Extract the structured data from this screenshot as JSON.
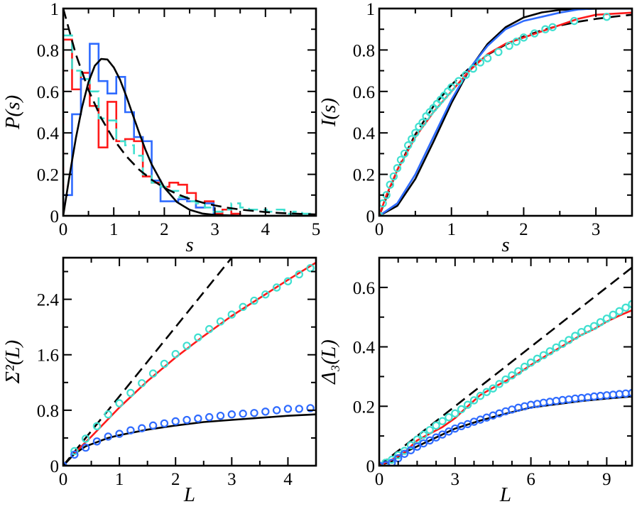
{
  "colors": {
    "red": "#ff1a1a",
    "blue": "#2f6bff",
    "cyan": "#40e0d0",
    "black": "#000000"
  },
  "chart_data": [
    {
      "type": "line",
      "panel": "top-left",
      "xlabel": "s",
      "ylabel": "P(s)",
      "xlim": [
        0,
        5
      ],
      "ylim": [
        0,
        1
      ],
      "xticks": [
        "0",
        "1",
        "2",
        "3",
        "4",
        "5"
      ],
      "xtick_values": [
        0,
        1,
        2,
        3,
        4,
        5
      ],
      "yticks": [
        "0",
        "0.2",
        "0.4",
        "0.6",
        "0.8",
        "1"
      ],
      "ytick_values": [
        0,
        0.2,
        0.4,
        0.6,
        0.8,
        1
      ],
      "x_minor_step": 0.5,
      "y_minor_step": 0.1,
      "histograms": [
        {
          "color": "red",
          "style": "solid",
          "bin_width": 0.175,
          "values": [
            0.85,
            0.61,
            0.69,
            0.53,
            0.33,
            0.55,
            0.36,
            0.37,
            0.36,
            0.19,
            0.16,
            0.14,
            0.16,
            0.15,
            0.11,
            0.04,
            0.07,
            0.01,
            0.03,
            0.01
          ]
        },
        {
          "color": "blue",
          "style": "solid",
          "bin_width": 0.175,
          "values": [
            0.1,
            0.49,
            0.66,
            0.83,
            0.65,
            0.59,
            0.67,
            0.5,
            0.38,
            0.36,
            0.17,
            0.07,
            0.07,
            0.08,
            0.07,
            0.04,
            0.06,
            0.0
          ]
        },
        {
          "color": "cyan",
          "style": "dashed",
          "bin_width": 0.175,
          "values": [
            0.87,
            0.7,
            0.66,
            0.6,
            0.47,
            0.46,
            0.36,
            0.34,
            0.29,
            0.2,
            0.16,
            0.14,
            0.12,
            0.09,
            0.07,
            0.06,
            0.04,
            0.02,
            0.03,
            0.06,
            0.04,
            0.03,
            0.03,
            0.02,
            0.03,
            0.01,
            0.02,
            0.01
          ]
        }
      ],
      "series": [
        {
          "color": "black",
          "style": "dashed",
          "x": [
            0,
            0.25,
            0.5,
            0.75,
            1,
            1.25,
            1.5,
            1.75,
            2,
            2.25,
            2.5,
            2.75,
            3,
            3.25,
            3.5,
            3.75,
            4,
            4.25,
            4.5,
            4.75,
            5
          ],
          "y": [
            1,
            0.779,
            0.607,
            0.472,
            0.368,
            0.287,
            0.223,
            0.174,
            0.135,
            0.105,
            0.082,
            0.064,
            0.05,
            0.039,
            0.03,
            0.024,
            0.018,
            0.014,
            0.011,
            0.009,
            0.007
          ]
        },
        {
          "color": "black",
          "style": "solid",
          "x": [
            0,
            0.125,
            0.25,
            0.375,
            0.5,
            0.625,
            0.75,
            0.875,
            1,
            1.125,
            1.25,
            1.375,
            1.5,
            1.625,
            1.75,
            2,
            2.25,
            2.5,
            2.75,
            3,
            3.5,
            4,
            5
          ],
          "y": [
            0,
            0.193,
            0.374,
            0.526,
            0.645,
            0.724,
            0.757,
            0.754,
            0.716,
            0.656,
            0.576,
            0.488,
            0.402,
            0.32,
            0.248,
            0.136,
            0.066,
            0.029,
            0.011,
            0.004,
            0.0003,
            0,
            0
          ]
        }
      ]
    },
    {
      "type": "line",
      "panel": "top-right",
      "xlabel": "s",
      "ylabel": "I(s)",
      "xlim": [
        0,
        3.5
      ],
      "ylim": [
        0,
        1
      ],
      "xticks": [
        "0",
        "1",
        "2",
        "3"
      ],
      "xtick_values": [
        0,
        1,
        2,
        3
      ],
      "yticks": [
        "0",
        "0.2",
        "0.4",
        "0.6",
        "0.8",
        "1"
      ],
      "ytick_values": [
        0,
        0.2,
        0.4,
        0.6,
        0.8,
        1
      ],
      "x_minor_step": 0.5,
      "y_minor_step": 0.1,
      "series": [
        {
          "color": "black",
          "style": "dashed",
          "x": [
            0,
            0.25,
            0.5,
            0.75,
            1,
            1.25,
            1.5,
            1.75,
            2,
            2.25,
            2.5,
            2.75,
            3,
            3.25,
            3.5
          ],
          "y": [
            0,
            0.221,
            0.393,
            0.528,
            0.632,
            0.713,
            0.777,
            0.826,
            0.865,
            0.895,
            0.918,
            0.936,
            0.95,
            0.961,
            0.97
          ]
        },
        {
          "color": "black",
          "style": "solid",
          "x": [
            0,
            0.25,
            0.5,
            0.75,
            1,
            1.25,
            1.5,
            1.75,
            2,
            2.25,
            2.5,
            2.75,
            3,
            3.25,
            3.5
          ],
          "y": [
            0,
            0.048,
            0.178,
            0.357,
            0.544,
            0.707,
            0.829,
            0.91,
            0.957,
            0.981,
            0.993,
            0.997,
            0.999,
            1,
            1
          ]
        },
        {
          "color": "blue",
          "style": "solid",
          "x": [
            0,
            0.25,
            0.5,
            0.75,
            1,
            1.25,
            1.5,
            1.75,
            2,
            2.25,
            2.5,
            2.75,
            3,
            3.5
          ],
          "y": [
            0,
            0.06,
            0.2,
            0.38,
            0.56,
            0.71,
            0.82,
            0.9,
            0.94,
            0.96,
            0.98,
            0.995,
            1,
            1
          ]
        },
        {
          "color": "red",
          "style": "solid",
          "x": [
            0,
            0.1,
            0.25,
            0.5,
            0.75,
            1,
            1.25,
            1.5,
            1.75,
            2,
            2.25,
            2.5,
            2.75,
            3,
            3.25,
            3.5
          ],
          "y": [
            0,
            0.1,
            0.22,
            0.38,
            0.5,
            0.6,
            0.7,
            0.78,
            0.83,
            0.86,
            0.89,
            0.92,
            0.95,
            0.97,
            0.975,
            0.98
          ]
        },
        {
          "color": "cyan",
          "style": "circles",
          "x": [
            0,
            0.05,
            0.1,
            0.15,
            0.2,
            0.25,
            0.3,
            0.35,
            0.4,
            0.45,
            0.5,
            0.55,
            0.6,
            0.65,
            0.7,
            0.75,
            0.8,
            0.85,
            0.9,
            0.95,
            1.0,
            1.1,
            1.2,
            1.3,
            1.4,
            1.5,
            1.65,
            1.8,
            1.9,
            2.0,
            2.15,
            2.3,
            2.4,
            2.7,
            3.15
          ],
          "y": [
            0,
            0.06,
            0.1,
            0.15,
            0.19,
            0.23,
            0.27,
            0.3,
            0.34,
            0.37,
            0.4,
            0.43,
            0.45,
            0.48,
            0.5,
            0.52,
            0.54,
            0.56,
            0.58,
            0.6,
            0.62,
            0.65,
            0.68,
            0.71,
            0.74,
            0.76,
            0.79,
            0.82,
            0.84,
            0.86,
            0.88,
            0.9,
            0.91,
            0.94,
            0.96
          ]
        }
      ]
    },
    {
      "type": "line",
      "panel": "bottom-left",
      "xlabel": "L",
      "ylabel": "Σ²(L)",
      "xlim": [
        0,
        4.5
      ],
      "ylim": [
        0,
        3
      ],
      "xticks": [
        "0",
        "1",
        "2",
        "3",
        "4"
      ],
      "xtick_values": [
        0,
        1,
        2,
        3,
        4
      ],
      "yticks": [
        "0",
        "0.8",
        "1.6",
        "2.4"
      ],
      "ytick_values": [
        0,
        0.8,
        1.6,
        2.4
      ],
      "x_minor_step": 0.5,
      "y_minor_step": 0.4,
      "series": [
        {
          "color": "black",
          "style": "dashed",
          "x": [
            0,
            3
          ],
          "y": [
            0,
            3
          ]
        },
        {
          "color": "black",
          "style": "solid",
          "x": [
            0,
            0.2,
            0.4,
            0.6,
            0.8,
            1,
            1.5,
            2,
            2.5,
            3,
            3.5,
            4,
            4.5
          ],
          "y": [
            0,
            0.17,
            0.28,
            0.34,
            0.4,
            0.44,
            0.52,
            0.58,
            0.63,
            0.66,
            0.69,
            0.72,
            0.74
          ]
        },
        {
          "color": "red",
          "style": "solid",
          "x": [
            0.2,
            0.5,
            1,
            1.5,
            2,
            2.5,
            3,
            3.5,
            4,
            4.5
          ],
          "y": [
            0.18,
            0.42,
            0.84,
            1.22,
            1.56,
            1.87,
            2.16,
            2.42,
            2.68,
            2.93
          ]
        },
        {
          "color": "cyan",
          "style": "circles",
          "x": [
            0.2,
            0.4,
            0.6,
            0.8,
            1.0,
            1.2,
            1.4,
            1.6,
            1.8,
            2.0,
            2.2,
            2.4,
            2.6,
            2.8,
            3.0,
            3.2,
            3.4,
            3.6,
            3.8,
            4.0,
            4.2,
            4.4
          ],
          "y": [
            0.21,
            0.39,
            0.57,
            0.74,
            0.9,
            1.05,
            1.19,
            1.33,
            1.47,
            1.61,
            1.73,
            1.85,
            1.97,
            2.08,
            2.18,
            2.29,
            2.38,
            2.47,
            2.57,
            2.66,
            2.76,
            2.85
          ]
        },
        {
          "color": "blue",
          "style": "circles",
          "x": [
            0,
            0.2,
            0.4,
            0.6,
            0.8,
            1.0,
            1.2,
            1.4,
            1.6,
            1.8,
            2.0,
            2.2,
            2.4,
            2.6,
            2.8,
            3.0,
            3.2,
            3.4,
            3.6,
            3.8,
            4.0,
            4.2,
            4.4
          ],
          "y": [
            0,
            0.16,
            0.26,
            0.35,
            0.42,
            0.46,
            0.51,
            0.54,
            0.58,
            0.61,
            0.64,
            0.66,
            0.68,
            0.7,
            0.72,
            0.74,
            0.75,
            0.76,
            0.78,
            0.8,
            0.82,
            0.82,
            0.83
          ]
        }
      ]
    },
    {
      "type": "line",
      "panel": "bottom-right",
      "xlabel": "L",
      "ylabel": "Δ₃(L)",
      "xlim": [
        0,
        10
      ],
      "ylim": [
        0,
        0.7
      ],
      "xticks": [
        "0",
        "3",
        "6",
        "9"
      ],
      "xtick_values": [
        0,
        3,
        6,
        9
      ],
      "yticks": [
        "0",
        "0.2",
        "0.4",
        "0.6"
      ],
      "ytick_values": [
        0,
        0.2,
        0.4,
        0.6
      ],
      "x_minor_step": 0.75,
      "y_minor_step": 0.1,
      "series": [
        {
          "color": "black",
          "style": "dashed",
          "x": [
            0,
            10
          ],
          "y": [
            0,
            0.667
          ]
        },
        {
          "color": "black",
          "style": "solid",
          "x": [
            0,
            0.5,
            1,
            1.5,
            2,
            3,
            4,
            5,
            6,
            7,
            8,
            9,
            10
          ],
          "y": [
            0,
            0.015,
            0.045,
            0.065,
            0.085,
            0.125,
            0.152,
            0.175,
            0.196,
            0.207,
            0.218,
            0.226,
            0.233
          ]
        },
        {
          "color": "red",
          "style": "solid",
          "x": [
            0,
            0.5,
            1,
            1.5,
            2,
            2.5,
            3,
            3.5,
            4,
            4.5,
            5,
            5.5,
            6,
            6.5,
            7,
            7.5,
            8,
            8.5,
            9,
            9.5,
            10
          ],
          "y": [
            0,
            0.02,
            0.045,
            0.085,
            0.108,
            0.13,
            0.16,
            0.2,
            0.238,
            0.262,
            0.285,
            0.31,
            0.339,
            0.365,
            0.39,
            0.415,
            0.44,
            0.46,
            0.485,
            0.505,
            0.523
          ]
        },
        {
          "color": "cyan",
          "style": "circles",
          "x": [
            0,
            0.25,
            0.5,
            0.75,
            1,
            1.25,
            1.5,
            1.75,
            2,
            2.25,
            2.5,
            2.75,
            3,
            3.25,
            3.5,
            3.75,
            4,
            4.25,
            4.5,
            4.75,
            5,
            5.25,
            5.5,
            5.75,
            6,
            6.25,
            6.5,
            6.75,
            7,
            7.25,
            7.5,
            7.75,
            8,
            8.25,
            8.5,
            8.75,
            9,
            9.25,
            9.5,
            9.75,
            10
          ],
          "y": [
            0,
            0.01,
            0.02,
            0.035,
            0.05,
            0.069,
            0.088,
            0.104,
            0.12,
            0.135,
            0.15,
            0.163,
            0.176,
            0.19,
            0.205,
            0.22,
            0.235,
            0.248,
            0.26,
            0.275,
            0.29,
            0.304,
            0.318,
            0.333,
            0.347,
            0.36,
            0.372,
            0.385,
            0.398,
            0.41,
            0.423,
            0.437,
            0.45,
            0.46,
            0.47,
            0.483,
            0.495,
            0.508,
            0.52,
            0.532,
            0.544
          ]
        },
        {
          "color": "blue",
          "style": "circles",
          "x": [
            0,
            0.25,
            0.5,
            0.75,
            1,
            1.25,
            1.5,
            1.75,
            2,
            2.25,
            2.5,
            2.75,
            3,
            3.25,
            3.5,
            3.75,
            4,
            4.25,
            4.5,
            4.75,
            5,
            5.25,
            5.5,
            5.75,
            6,
            6.25,
            6.5,
            6.75,
            7,
            7.25,
            7.5,
            7.75,
            8,
            8.25,
            8.5,
            8.75,
            9,
            9.25,
            9.5,
            9.75,
            10
          ],
          "y": [
            0,
            0.002,
            0.01,
            0.025,
            0.04,
            0.052,
            0.064,
            0.075,
            0.085,
            0.095,
            0.105,
            0.115,
            0.125,
            0.133,
            0.14,
            0.148,
            0.155,
            0.162,
            0.169,
            0.176,
            0.183,
            0.189,
            0.195,
            0.2,
            0.205,
            0.208,
            0.212,
            0.215,
            0.218,
            0.221,
            0.223,
            0.226,
            0.228,
            0.23,
            0.233,
            0.235,
            0.237,
            0.239,
            0.241,
            0.243,
            0.245
          ]
        }
      ]
    }
  ]
}
